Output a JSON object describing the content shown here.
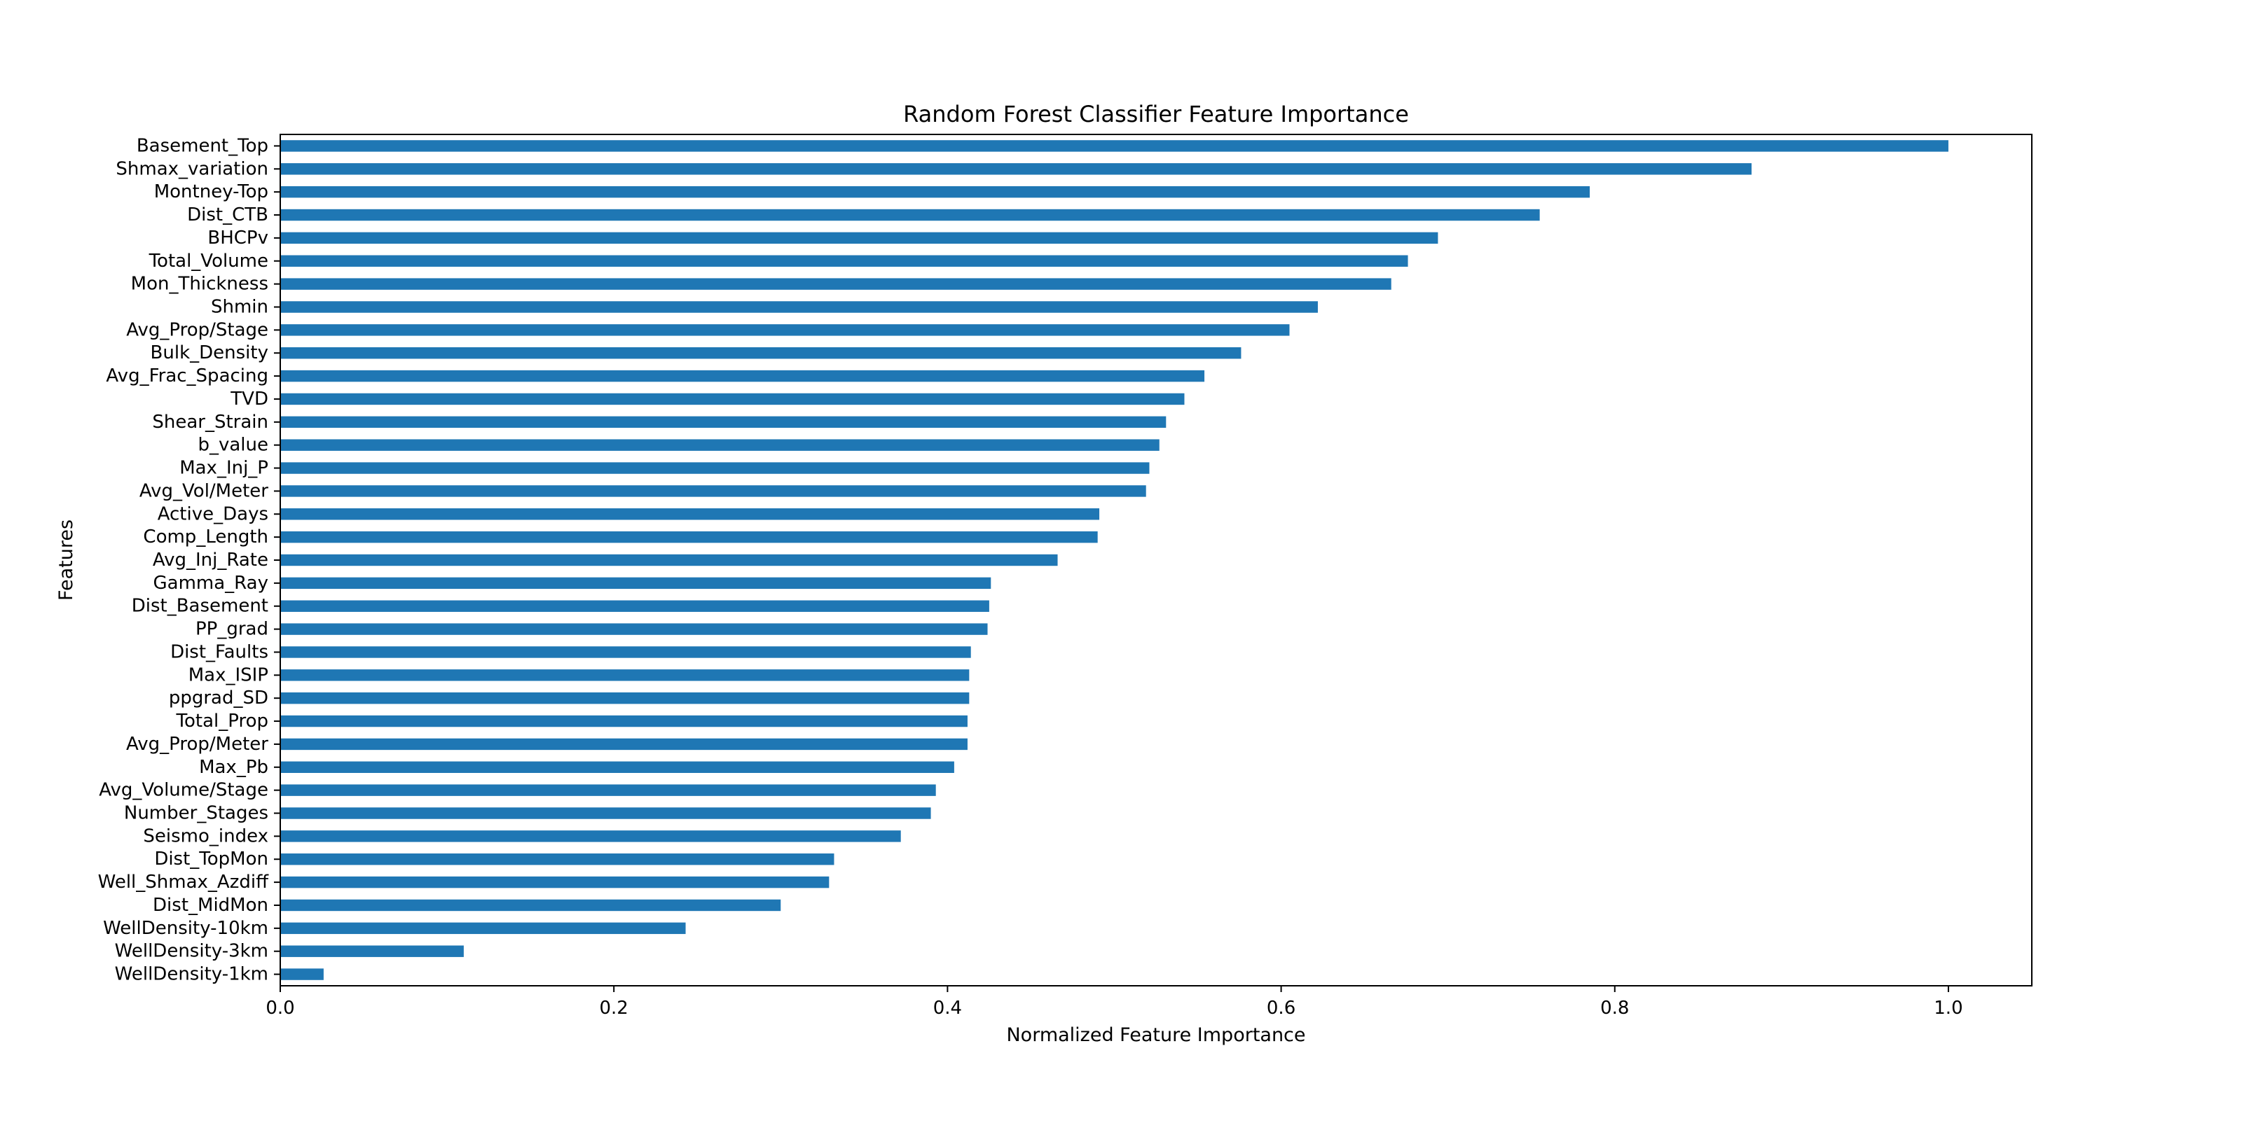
{
  "chart_data": {
    "type": "bar",
    "orientation": "horizontal",
    "title": "Random Forest Classifier Feature Importance",
    "xlabel": "Normalized Feature Importance",
    "ylabel": "Features",
    "xlim": [
      0,
      1.05
    ],
    "xticks": [
      0.0,
      0.2,
      0.4,
      0.6,
      0.8,
      1.0
    ],
    "xtick_labels": [
      "0.0",
      "0.2",
      "0.4",
      "0.6",
      "0.8",
      "1.0"
    ],
    "grid": false,
    "bar_color": "#1f77b4",
    "categories": [
      "Basement_Top",
      "Shmax_variation",
      "Montney-Top",
      "Dist_CTB",
      "BHCPv",
      "Total_Volume",
      "Mon_Thickness",
      "Shmin",
      "Avg_Prop/Stage",
      "Bulk_Density",
      "Avg_Frac_Spacing",
      "TVD",
      "Shear_Strain",
      "b_value",
      "Max_Inj_P",
      "Avg_Vol/Meter",
      "Active_Days",
      "Comp_Length",
      "Avg_Inj_Rate",
      "Gamma_Ray",
      "Dist_Basement",
      "PP_grad",
      "Dist_Faults",
      "Max_ISIP",
      "ppgrad_SD",
      "Total_Prop",
      "Avg_Prop/Meter",
      "Max_Pb",
      "Avg_Volume/Stage",
      "Number_Stages",
      "Seismo_index",
      "Dist_TopMon",
      "Well_Shmax_Azdiff",
      "Dist_MidMon",
      "WellDensity-10km",
      "WellDensity-3km",
      "WellDensity-1km"
    ],
    "values": [
      1.0,
      0.882,
      0.785,
      0.755,
      0.694,
      0.676,
      0.666,
      0.622,
      0.605,
      0.576,
      0.554,
      0.542,
      0.531,
      0.527,
      0.521,
      0.519,
      0.491,
      0.49,
      0.466,
      0.426,
      0.425,
      0.424,
      0.414,
      0.413,
      0.413,
      0.412,
      0.412,
      0.404,
      0.393,
      0.39,
      0.372,
      0.332,
      0.329,
      0.3,
      0.243,
      0.11,
      0.026
    ]
  }
}
